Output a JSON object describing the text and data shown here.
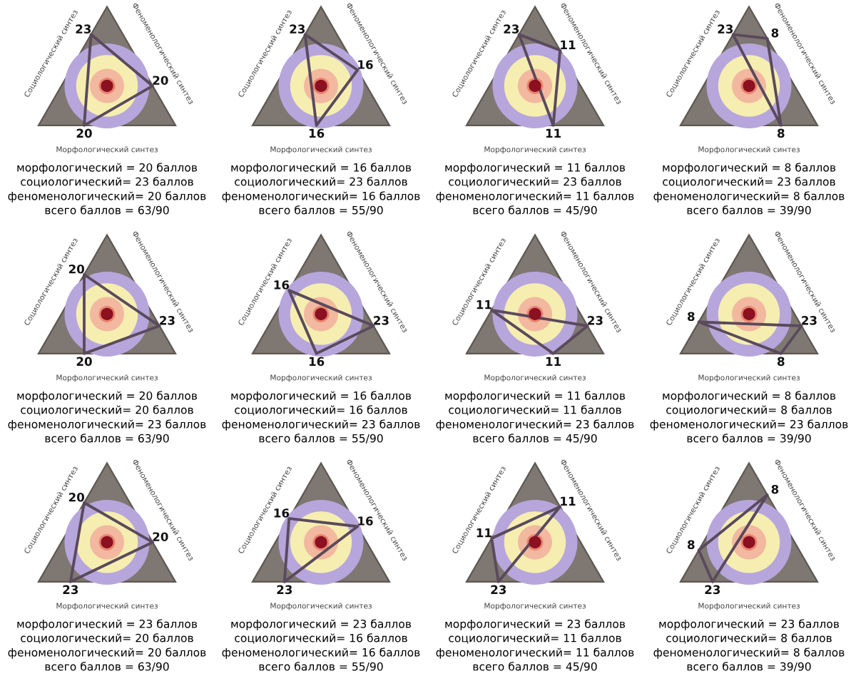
{
  "chart_data": [
    {
      "type": "other",
      "categories": [
        "Морфологический синтез",
        "Социологический синтез",
        "Феноменологический синтез"
      ],
      "values": [
        20,
        23,
        20
      ],
      "data_labels": true,
      "annotations": [
        "морфологический = 20 баллов",
        "социологический= 23 баллов",
        "феноменологический= 20 баллов",
        "всего баллов = 63/90"
      ]
    },
    {
      "type": "other",
      "categories": [
        "Морфологический синтез",
        "Социологический синтез",
        "Феноменологический синтез"
      ],
      "values": [
        16,
        23,
        16
      ],
      "data_labels": true,
      "annotations": [
        "морфологический = 16 баллов",
        "социологический= 23 баллов",
        "феноменологический= 16 баллов",
        "всего баллов = 55/90"
      ]
    },
    {
      "type": "other",
      "categories": [
        "Морфологический синтез",
        "Социологический синтез",
        "Феноменологический синтез"
      ],
      "values": [
        11,
        23,
        11
      ],
      "data_labels": true,
      "annotations": [
        "морфологический = 11 баллов",
        "социологический= 23 баллов",
        "феноменологический= 11 баллов",
        "всего баллов = 45/90"
      ]
    },
    {
      "type": "other",
      "categories": [
        "Морфологический синтез",
        "Социологический синтез",
        "Феноменологический синтез"
      ],
      "values": [
        8,
        23,
        8
      ],
      "data_labels": true,
      "annotations": [
        "морфологический = 8 баллов",
        "социологический= 23 баллов",
        "феноменологический= 8 баллов",
        "всего баллов = 39/90"
      ]
    },
    {
      "type": "other",
      "categories": [
        "Морфологический синтез",
        "Социологический синтез",
        "Феноменологический синтез"
      ],
      "values": [
        20,
        20,
        23
      ],
      "data_labels": true,
      "annotations": [
        "морфологический = 20 баллов",
        "социологический= 20 баллов",
        "феноменологический= 23 баллов",
        "всего баллов = 63/90"
      ]
    },
    {
      "type": "other",
      "categories": [
        "Морфологический синтез",
        "Социологический синтез",
        "Феноменологический синтез"
      ],
      "values": [
        16,
        16,
        23
      ],
      "data_labels": true,
      "annotations": [
        "морфологический = 16 баллов",
        "социологический= 16 баллов",
        "феноменологический= 23 баллов",
        "всего баллов = 55/90"
      ]
    },
    {
      "type": "other",
      "categories": [
        "Морфологический синтез",
        "Социологический синтез",
        "Феноменологический синтез"
      ],
      "values": [
        11,
        11,
        23
      ],
      "data_labels": true,
      "annotations": [
        "морфологический = 11 баллов",
        "социологический= 11 баллов",
        "феноменологический= 23 баллов",
        "всего баллов = 45/90"
      ]
    },
    {
      "type": "other",
      "categories": [
        "Морфологический синтез",
        "Социологический синтез",
        "Феноменологический синтез"
      ],
      "values": [
        8,
        8,
        23
      ],
      "data_labels": true,
      "annotations": [
        "морфологический = 8 баллов",
        "социологический= 8 баллов",
        "феноменологический= 23 баллов",
        "всего баллов = 39/90"
      ]
    },
    {
      "type": "other",
      "categories": [
        "Морфологический синтез",
        "Социологический синтез",
        "Феноменологический синтез"
      ],
      "values": [
        23,
        20,
        20
      ],
      "data_labels": true,
      "annotations": [
        "морфологический = 23 баллов",
        "социологический= 20 баллов",
        "феноменологический= 20 баллов",
        "всего баллов = 63/90"
      ]
    },
    {
      "type": "other",
      "categories": [
        "Морфологический синтез",
        "Социологический синтез",
        "Феноменологический синтез"
      ],
      "values": [
        23,
        16,
        16
      ],
      "data_labels": true,
      "annotations": [
        "морфологический = 23 баллов",
        "социологический= 16 баллов",
        "феноменологический= 16 баллов",
        "всего баллов = 55/90"
      ]
    },
    {
      "type": "other",
      "categories": [
        "Морфологический синтез",
        "Социологический синтез",
        "Феноменологический синтез"
      ],
      "values": [
        23,
        11,
        11
      ],
      "data_labels": true,
      "annotations": [
        "морфологический = 23 баллов",
        "социологический= 11 баллов",
        "феноменологический= 11 баллов",
        "всего баллов = 45/90"
      ]
    },
    {
      "type": "other",
      "categories": [
        "Морфологический синтез",
        "Социологический синтез",
        "Феноменологический синтез"
      ],
      "values": [
        23,
        8,
        8
      ],
      "data_labels": true,
      "annotations": [
        "морфологический = 23 баллов",
        "социологический= 8 баллов",
        "феноменологический= 8 баллов",
        "всего баллов = 39/90"
      ]
    }
  ]
}
